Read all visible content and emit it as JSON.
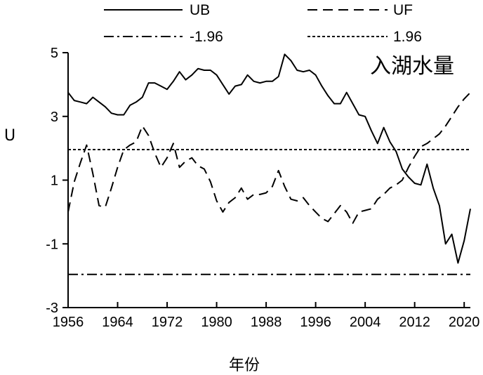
{
  "chart_data": {
    "type": "line",
    "title": "",
    "annotation": "入湖水量",
    "xlabel": "年份",
    "ylabel": "U",
    "xlim": [
      1956,
      2021
    ],
    "ylim": [
      -3,
      5
    ],
    "xticks": [
      "1956",
      "1964",
      "1972",
      "1980",
      "1988",
      "1996",
      "2004",
      "2012",
      "2020"
    ],
    "yticks": [
      "5",
      "3",
      "1",
      "-1",
      "-3"
    ],
    "grid": false,
    "legend_position": "top",
    "x": [
      1956,
      1957,
      1958,
      1959,
      1960,
      1961,
      1962,
      1963,
      1964,
      1965,
      1966,
      1967,
      1968,
      1969,
      1970,
      1971,
      1972,
      1973,
      1974,
      1975,
      1976,
      1977,
      1978,
      1979,
      1980,
      1981,
      1982,
      1983,
      1984,
      1985,
      1986,
      1987,
      1988,
      1989,
      1990,
      1991,
      1992,
      1993,
      1994,
      1995,
      1996,
      1997,
      1998,
      1999,
      2000,
      2001,
      2002,
      2003,
      2004,
      2005,
      2006,
      2007,
      2008,
      2009,
      2010,
      2011,
      2012,
      2013,
      2014,
      2015,
      2016,
      2017,
      2018,
      2019,
      2020,
      2021
    ],
    "series": [
      {
        "name": "UB",
        "style": "solid",
        "values": [
          3.75,
          3.5,
          3.45,
          3.4,
          3.6,
          3.45,
          3.3,
          3.1,
          3.05,
          3.05,
          3.35,
          3.45,
          3.6,
          4.05,
          4.05,
          3.95,
          3.85,
          4.1,
          4.4,
          4.15,
          4.3,
          4.5,
          4.45,
          4.45,
          4.3,
          4.0,
          3.7,
          3.95,
          4.0,
          4.3,
          4.1,
          4.05,
          4.1,
          4.1,
          4.25,
          4.95,
          4.75,
          4.45,
          4.4,
          4.45,
          4.3,
          3.95,
          3.65,
          3.4,
          3.4,
          3.75,
          3.4,
          3.05,
          3.0,
          2.55,
          2.15,
          2.65,
          2.2,
          1.9,
          1.35,
          1.1,
          0.9,
          0.85,
          1.5,
          0.75,
          0.2,
          -1.0,
          -0.7,
          -1.6,
          -0.9,
          0.1
        ]
      },
      {
        "name": "UF",
        "style": "dashed",
        "values": [
          0.0,
          0.95,
          1.55,
          2.1,
          1.2,
          0.2,
          0.15,
          0.75,
          1.4,
          1.95,
          2.1,
          2.2,
          2.7,
          2.4,
          1.85,
          1.4,
          1.7,
          2.15,
          1.4,
          1.6,
          1.7,
          1.45,
          1.35,
          0.95,
          0.35,
          0.0,
          0.3,
          0.45,
          0.75,
          0.4,
          0.55,
          0.55,
          0.6,
          0.8,
          1.3,
          0.8,
          0.4,
          0.35,
          0.45,
          0.2,
          0.0,
          -0.2,
          -0.3,
          -0.05,
          0.2,
          0.0,
          -0.35,
          0.0,
          0.05,
          0.1,
          0.4,
          0.55,
          0.75,
          0.85,
          1.0,
          1.4,
          1.75,
          2.05,
          2.15,
          2.3,
          2.45,
          2.7,
          3.0,
          3.3,
          3.55,
          3.75
        ]
      }
    ],
    "reference_lines": [
      {
        "name": "-1.96",
        "value": -1.96,
        "style": "dashdot"
      },
      {
        "name": "1.96",
        "value": 1.96,
        "style": "dotted"
      }
    ]
  }
}
